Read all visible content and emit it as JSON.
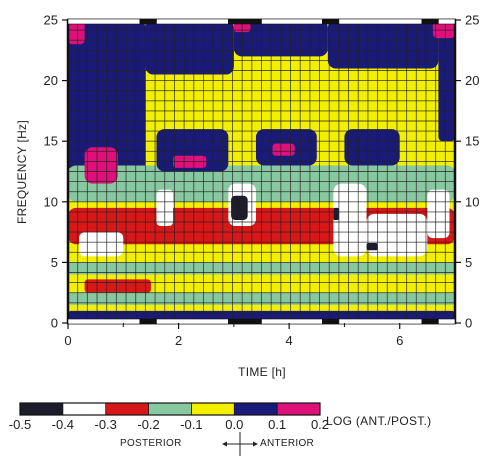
{
  "chart_data": {
    "type": "heatmap",
    "xlabel": "TIME [h]",
    "ylabel": "FREQUENCY [Hz]",
    "xlim": [
      0,
      7
    ],
    "ylim": [
      0,
      25
    ],
    "x_ticks": [
      "0",
      "2",
      "4",
      "6"
    ],
    "y_ticks": [
      "0",
      "5",
      "10",
      "15",
      "20",
      "25"
    ],
    "y_ticks_right": [
      "0",
      "5",
      "10",
      "15",
      "20",
      "25"
    ],
    "grid": true,
    "colorbar": {
      "title": "LOG (ANT./POST.)",
      "tick_labels": [
        "-0.5",
        "-0.4",
        "-0.3",
        "-0.2",
        "-0.1",
        "0.0",
        "0.1",
        "0.2"
      ],
      "levels": [
        -0.5,
        -0.4,
        -0.3,
        -0.2,
        -0.1,
        0.0,
        0.1,
        0.2
      ],
      "colors": [
        "#1c1c2c",
        "#ffffff",
        "#d81818",
        "#88c8a0",
        "#f2f000",
        "#1a1a78",
        "#e0107a"
      ],
      "left_label": "POSTERIOR",
      "right_label": "ANTERIOR"
    },
    "sleep_stage_bar": [
      {
        "start": 0.0,
        "end": 1.3,
        "color": "#ffffff"
      },
      {
        "start": 1.3,
        "end": 1.6,
        "color": "#111111"
      },
      {
        "start": 1.6,
        "end": 2.9,
        "color": "#ffffff"
      },
      {
        "start": 2.9,
        "end": 3.5,
        "color": "#111111"
      },
      {
        "start": 3.5,
        "end": 4.6,
        "color": "#ffffff"
      },
      {
        "start": 4.6,
        "end": 4.9,
        "color": "#111111"
      },
      {
        "start": 4.9,
        "end": 6.4,
        "color": "#ffffff"
      },
      {
        "start": 6.4,
        "end": 6.7,
        "color": "#111111"
      },
      {
        "start": 6.7,
        "end": 7.0,
        "color": "#ffffff"
      }
    ],
    "regions": [
      {
        "value": -0.05,
        "color": "#f2f000",
        "x": [
          0,
          7
        ],
        "y": [
          0,
          25
        ]
      },
      {
        "value": 0.05,
        "color": "#1a1a78",
        "x": [
          0,
          1.4
        ],
        "y": [
          12.5,
          25
        ]
      },
      {
        "value": 0.05,
        "color": "#1a1a78",
        "x": [
          1.4,
          3.0
        ],
        "y": [
          20.5,
          25
        ]
      },
      {
        "value": 0.05,
        "color": "#1a1a78",
        "x": [
          3.0,
          4.7
        ],
        "y": [
          22,
          25
        ]
      },
      {
        "value": 0.05,
        "color": "#1a1a78",
        "x": [
          4.7,
          6.7
        ],
        "y": [
          21,
          25
        ]
      },
      {
        "value": 0.05,
        "color": "#1a1a78",
        "x": [
          6.7,
          7.0
        ],
        "y": [
          15,
          25
        ]
      },
      {
        "value": 0.15,
        "color": "#e0107a",
        "x": [
          0.0,
          0.3
        ],
        "y": [
          23,
          25
        ]
      },
      {
        "value": 0.15,
        "color": "#e0107a",
        "x": [
          3.0,
          3.3
        ],
        "y": [
          24,
          25
        ]
      },
      {
        "value": 0.15,
        "color": "#e0107a",
        "x": [
          6.6,
          7.0
        ],
        "y": [
          23.5,
          25
        ]
      },
      {
        "value": -0.15,
        "color": "#88c8a0",
        "x": [
          0,
          7
        ],
        "y": [
          10,
          13
        ]
      },
      {
        "value": -0.25,
        "color": "#d81818",
        "x": [
          0,
          7
        ],
        "y": [
          6.5,
          9.5
        ]
      },
      {
        "value": -0.15,
        "color": "#88c8a0",
        "x": [
          0,
          7
        ],
        "y": [
          4.0,
          5.0
        ]
      },
      {
        "value": -0.25,
        "color": "#d81818",
        "x": [
          0.3,
          1.5
        ],
        "y": [
          2.5,
          3.6
        ]
      },
      {
        "value": -0.15,
        "color": "#88c8a0",
        "x": [
          0,
          7
        ],
        "y": [
          1.5,
          2.5
        ]
      },
      {
        "value": 0.05,
        "color": "#1a1a78",
        "x": [
          0,
          7
        ],
        "y": [
          0,
          1.0
        ]
      },
      {
        "value": 0.05,
        "color": "#1a1a78",
        "x": [
          1.6,
          2.9
        ],
        "y": [
          12.5,
          16
        ]
      },
      {
        "value": 0.05,
        "color": "#1a1a78",
        "x": [
          3.4,
          4.5
        ],
        "y": [
          13,
          16
        ]
      },
      {
        "value": 0.05,
        "color": "#1a1a78",
        "x": [
          5.0,
          6.0
        ],
        "y": [
          13,
          16
        ]
      },
      {
        "value": 0.15,
        "color": "#e0107a",
        "x": [
          0.3,
          0.9
        ],
        "y": [
          11.5,
          14.5
        ]
      },
      {
        "value": 0.15,
        "color": "#e0107a",
        "x": [
          1.9,
          2.5
        ],
        "y": [
          12.8,
          13.8
        ]
      },
      {
        "value": 0.15,
        "color": "#e0107a",
        "x": [
          3.7,
          4.1
        ],
        "y": [
          13.8,
          14.8
        ]
      },
      {
        "value": -0.45,
        "color": "#ffffff",
        "x": [
          0.2,
          1.0
        ],
        "y": [
          5.5,
          7.5
        ]
      },
      {
        "value": -0.45,
        "color": "#ffffff",
        "x": [
          1.6,
          1.9
        ],
        "y": [
          8,
          11
        ]
      },
      {
        "value": -0.45,
        "color": "#ffffff",
        "x": [
          2.9,
          3.4
        ],
        "y": [
          8,
          11.5
        ]
      },
      {
        "value": -0.45,
        "color": "#ffffff",
        "x": [
          4.8,
          5.4
        ],
        "y": [
          5.5,
          11.5
        ]
      },
      {
        "value": -0.45,
        "color": "#ffffff",
        "x": [
          5.4,
          6.5
        ],
        "y": [
          5.5,
          9
        ]
      },
      {
        "value": -0.45,
        "color": "#ffffff",
        "x": [
          6.5,
          6.9
        ],
        "y": [
          7,
          11
        ]
      },
      {
        "value": -0.5,
        "color": "#1c1c2c",
        "x": [
          2.95,
          3.25
        ],
        "y": [
          8.5,
          10.5
        ]
      },
      {
        "value": -0.5,
        "color": "#1c1c2c",
        "x": [
          4.8,
          4.9
        ],
        "y": [
          8.5,
          9.5
        ]
      },
      {
        "value": -0.5,
        "color": "#1c1c2c",
        "x": [
          5.4,
          5.6
        ],
        "y": [
          6,
          6.6
        ]
      }
    ]
  }
}
